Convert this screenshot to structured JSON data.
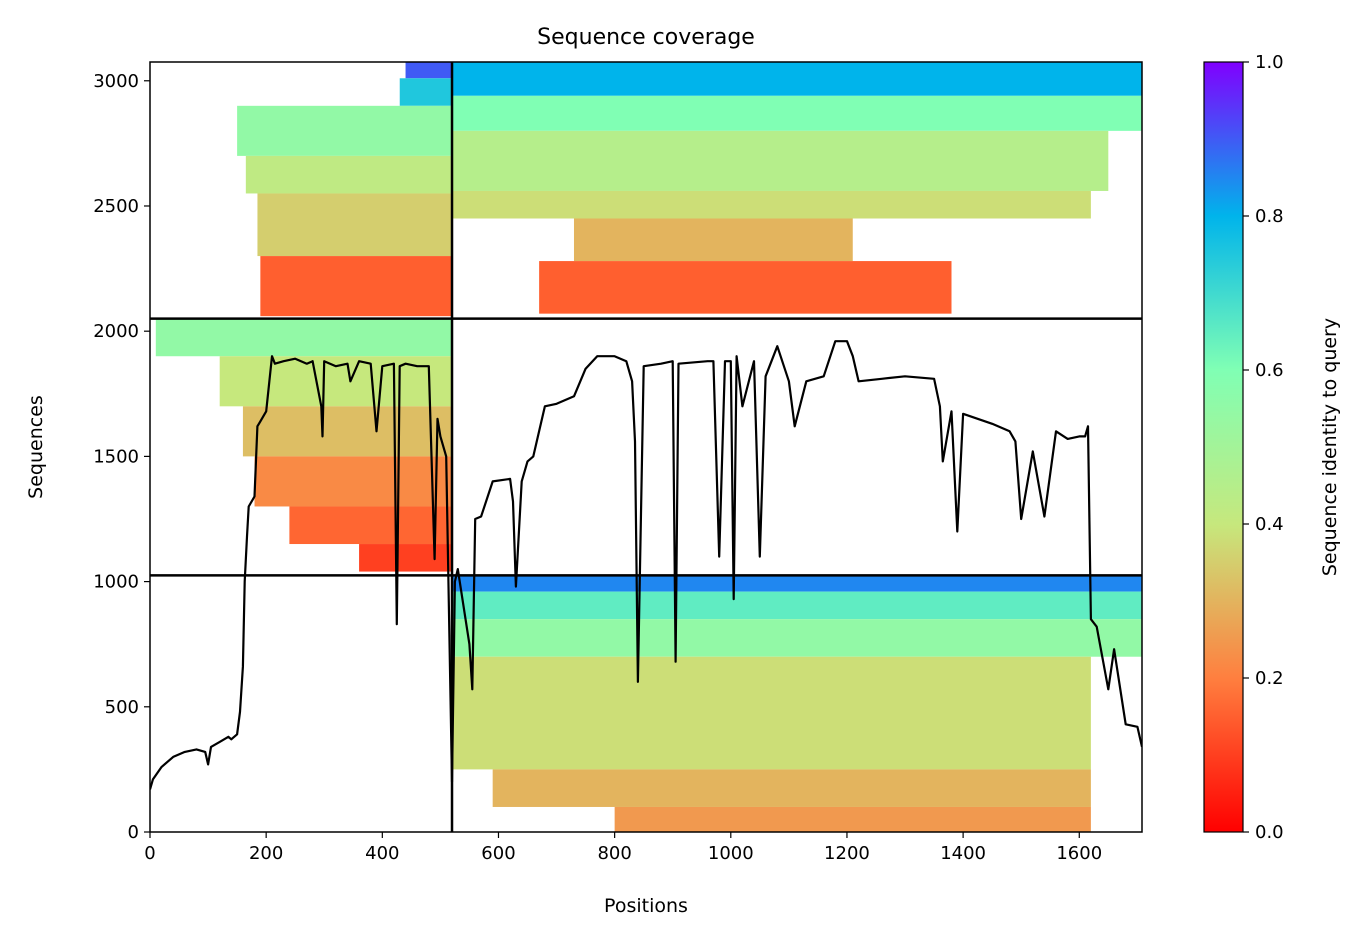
{
  "chart_data": {
    "type": "heatmap",
    "title": "Sequence coverage",
    "xlabel": "Positions",
    "ylabel": "Sequences",
    "xlim": [
      0,
      1708
    ],
    "ylim": [
      0,
      3075
    ],
    "x_ticks": [
      0,
      200,
      400,
      600,
      800,
      1000,
      1200,
      1400,
      1600
    ],
    "y_ticks": [
      0,
      500,
      1000,
      1500,
      2000,
      2500,
      3000
    ],
    "grid": false,
    "block_boundaries": {
      "x": [
        520
      ],
      "y": [
        1025,
        2050
      ]
    },
    "colorbar": {
      "label": "Sequence identity to query",
      "min": 0.0,
      "max": 1.0,
      "ticks": [
        "0.0",
        "0.2",
        "0.4",
        "0.6",
        "0.8",
        "1.0"
      ],
      "colormap": "rainbow",
      "colors": [
        "#ff0000",
        "#ff7f3f",
        "#c6e87d",
        "#80ffb4",
        "#00b4eb",
        "#8000ff"
      ]
    },
    "coverage_blocks": [
      {
        "block": "upper-left",
        "x": [
          0,
          520
        ],
        "y": [
          2050,
          3075
        ],
        "bands": [
          {
            "x": [
              440,
              520
            ],
            "y": [
              3010,
              3075
            ],
            "identity": 0.9
          },
          {
            "x": [
              430,
              520
            ],
            "y": [
              2900,
              3010
            ],
            "identity": 0.75
          },
          {
            "x": [
              150,
              520
            ],
            "y": [
              2700,
              2900
            ],
            "identity": 0.55
          },
          {
            "x": [
              165,
              520
            ],
            "y": [
              2550,
              2700
            ],
            "identity": 0.42
          },
          {
            "x": [
              185,
              520
            ],
            "y": [
              2300,
              2550
            ],
            "identity": 0.35
          },
          {
            "x": [
              190,
              520
            ],
            "y": [
              2060,
              2300
            ],
            "identity": 0.15
          }
        ]
      },
      {
        "block": "upper-right",
        "x": [
          520,
          1708
        ],
        "y": [
          2050,
          3075
        ],
        "bands": [
          {
            "x": [
              520,
              1708
            ],
            "y": [
              2940,
              3075
            ],
            "identity": 0.8
          },
          {
            "x": [
              520,
              1708
            ],
            "y": [
              2800,
              2940
            ],
            "identity": 0.6
          },
          {
            "x": [
              520,
              1650
            ],
            "y": [
              2560,
              2800
            ],
            "identity": 0.45
          },
          {
            "x": [
              520,
              1620
            ],
            "y": [
              2450,
              2560
            ],
            "identity": 0.38
          },
          {
            "x": [
              730,
              1210
            ],
            "y": [
              2280,
              2450
            ],
            "identity": 0.3
          },
          {
            "x": [
              670,
              1380
            ],
            "y": [
              2070,
              2280
            ],
            "identity": 0.15
          }
        ]
      },
      {
        "block": "middle-left",
        "x": [
          0,
          520
        ],
        "y": [
          1025,
          2050
        ],
        "bands": [
          {
            "x": [
              10,
              520
            ],
            "y": [
              1900,
              2050
            ],
            "identity": 0.55
          },
          {
            "x": [
              120,
              520
            ],
            "y": [
              1700,
              1900
            ],
            "identity": 0.4
          },
          {
            "x": [
              160,
              520
            ],
            "y": [
              1500,
              1700
            ],
            "identity": 0.32
          },
          {
            "x": [
              180,
              520
            ],
            "y": [
              1300,
              1500
            ],
            "identity": 0.22
          },
          {
            "x": [
              240,
              520
            ],
            "y": [
              1150,
              1300
            ],
            "identity": 0.16
          },
          {
            "x": [
              360,
              520
            ],
            "y": [
              1040,
              1150
            ],
            "identity": 0.1
          }
        ]
      },
      {
        "block": "lower-right",
        "x": [
          520,
          1708
        ],
        "y": [
          0,
          1025
        ],
        "bands": [
          {
            "x": [
              520,
              1708
            ],
            "y": [
              960,
              1025
            ],
            "identity": 0.85
          },
          {
            "x": [
              520,
              1708
            ],
            "y": [
              850,
              960
            ],
            "identity": 0.65
          },
          {
            "x": [
              520,
              1708
            ],
            "y": [
              700,
              850
            ],
            "identity": 0.55
          },
          {
            "x": [
              520,
              1620
            ],
            "y": [
              250,
              700
            ],
            "identity": 0.38
          },
          {
            "x": [
              590,
              1620
            ],
            "y": [
              100,
              250
            ],
            "identity": 0.3
          },
          {
            "x": [
              800,
              1620
            ],
            "y": [
              0,
              100
            ],
            "identity": 0.25
          }
        ]
      }
    ],
    "series": [
      {
        "type": "line",
        "color": "#000000",
        "x": [
          0,
          5,
          20,
          40,
          60,
          80,
          95,
          100,
          105,
          120,
          135,
          140,
          150,
          155,
          160,
          163,
          167,
          170,
          180,
          185,
          190,
          200,
          210,
          215,
          230,
          250,
          260,
          270,
          280,
          295,
          297,
          300,
          320,
          340,
          345,
          360,
          380,
          390,
          400,
          420,
          425,
          430,
          440,
          460,
          480,
          490,
          495,
          500,
          510,
          520,
          525,
          530,
          550,
          555,
          560,
          570,
          590,
          620,
          625,
          630,
          640,
          650,
          660,
          670,
          680,
          700,
          730,
          750,
          770,
          800,
          820,
          830,
          835,
          840,
          850,
          880,
          900,
          905,
          910,
          960,
          970,
          980,
          990,
          1000,
          1005,
          1010,
          1020,
          1040,
          1050,
          1060,
          1080,
          1100,
          1110,
          1130,
          1160,
          1180,
          1200,
          1210,
          1220,
          1260,
          1300,
          1350,
          1360,
          1365,
          1380,
          1390,
          1400,
          1450,
          1480,
          1490,
          1500,
          1520,
          1540,
          1560,
          1580,
          1600,
          1610,
          1615,
          1620,
          1630,
          1650,
          1660,
          1680,
          1700,
          1708
        ],
        "y": [
          170,
          210,
          260,
          300,
          320,
          330,
          320,
          270,
          340,
          360,
          380,
          370,
          390,
          480,
          660,
          1000,
          1180,
          1300,
          1340,
          1620,
          1640,
          1680,
          1900,
          1870,
          1880,
          1890,
          1880,
          1870,
          1880,
          1700,
          1580,
          1880,
          1860,
          1870,
          1800,
          1880,
          1870,
          1600,
          1860,
          1870,
          830,
          1860,
          1870,
          1860,
          1860,
          1090,
          1650,
          1580,
          1500,
          200,
          1000,
          1050,
          750,
          570,
          1250,
          1260,
          1400,
          1410,
          1320,
          980,
          1400,
          1480,
          1500,
          1600,
          1700,
          1710,
          1740,
          1850,
          1900,
          1900,
          1880,
          1800,
          1560,
          600,
          1860,
          1870,
          1880,
          680,
          1870,
          1880,
          1880,
          1100,
          1880,
          1880,
          930,
          1900,
          1700,
          1880,
          1100,
          1820,
          1940,
          1800,
          1620,
          1800,
          1820,
          1960,
          1960,
          1900,
          1800,
          1810,
          1820,
          1810,
          1700,
          1480,
          1680,
          1200,
          1670,
          1630,
          1600,
          1560,
          1250,
          1520,
          1260,
          1600,
          1570,
          1580,
          1580,
          1620,
          850,
          820,
          570,
          730,
          430,
          420,
          340
        ]
      }
    ]
  }
}
